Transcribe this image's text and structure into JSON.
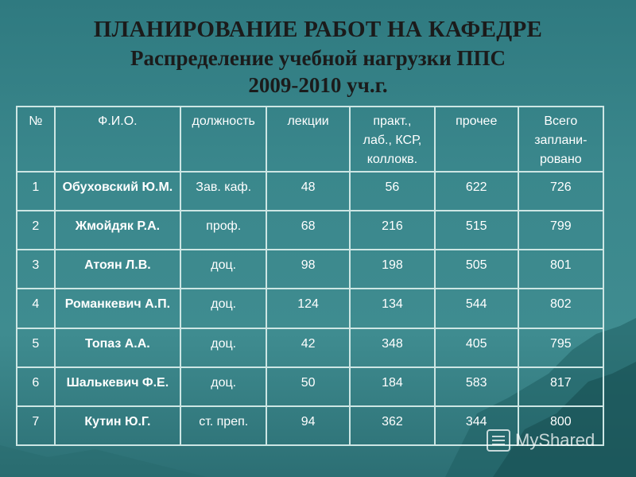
{
  "title": {
    "line1": "ПЛАНИРОВАНИЕ РАБОТ НА КАФЕДРЕ",
    "line2": "Распределение учебной нагрузки ППС",
    "line3": "2009-2010 уч.г."
  },
  "table": {
    "headers": {
      "num": "№",
      "fio": "Ф.И.О.",
      "position": "должность",
      "lectures": "лекции",
      "practice_l1": "практ.,",
      "practice_l2": "лаб., КСР,",
      "practice_l3": "коллокв.",
      "other": "прочее",
      "total_l1": "Всего",
      "total_l2": "заплани-",
      "total_l3": "ровано"
    },
    "rows": [
      {
        "num": "1",
        "fio": "Обуховский Ю.М.",
        "position": "Зав. каф.",
        "lectures": "48",
        "practice": "56",
        "other": "622",
        "total": "726"
      },
      {
        "num": "2",
        "fio": "Жмойдяк Р.А.",
        "position": "проф.",
        "lectures": "68",
        "practice": "216",
        "other": "515",
        "total": "799"
      },
      {
        "num": "3",
        "fio": "Атоян Л.В.",
        "position": "доц.",
        "lectures": "98",
        "practice": "198",
        "other": "505",
        "total": "801"
      },
      {
        "num": "4",
        "fio": "Романкевич А.П.",
        "position": "доц.",
        "lectures": "124",
        "practice": "134",
        "other": "544",
        "total": "802"
      },
      {
        "num": "5",
        "fio": "Топаз А.А.",
        "position": "доц.",
        "lectures": "42",
        "practice": "348",
        "other": "405",
        "total": "795"
      },
      {
        "num": "6",
        "fio": "Шалькевич Ф.Е.",
        "position": "доц.",
        "lectures": "50",
        "practice": "184",
        "other": "583",
        "total": "817"
      },
      {
        "num": "7",
        "fio": "Кутин Ю.Г.",
        "position": "ст. преп.",
        "lectures": "94",
        "practice": "362",
        "other": "344",
        "total": "800"
      }
    ]
  },
  "watermark": {
    "text": "MyShared",
    "icon": "presentation-icon"
  }
}
